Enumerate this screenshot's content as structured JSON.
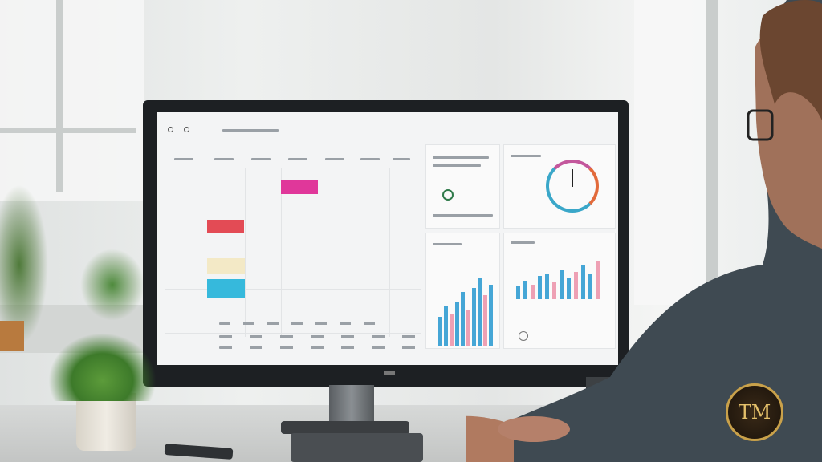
{
  "scene": {
    "description_free": true,
    "colors": {
      "bezel": "#1d2023",
      "screen": "#f3f4f5",
      "event_pink": "#e0379a",
      "event_red": "#e34b55",
      "event_cream": "#f3e9c6",
      "event_cyan": "#36b9dc",
      "chart_blue": "#45a6d6",
      "chart_pink": "#eea0b4"
    },
    "icons": [
      "gauge-icon",
      "bar-chart-icon",
      "calendar-grid-icon",
      "monitor-logo-icon"
    ]
  },
  "watermark": {
    "text": "TM"
  },
  "charts": {
    "left_bars": [
      40,
      55,
      45,
      60,
      75,
      50,
      80,
      95,
      70,
      85
    ],
    "right_bars": [
      30,
      45,
      35,
      55,
      60,
      40,
      70,
      50,
      65,
      80,
      60,
      90
    ]
  }
}
